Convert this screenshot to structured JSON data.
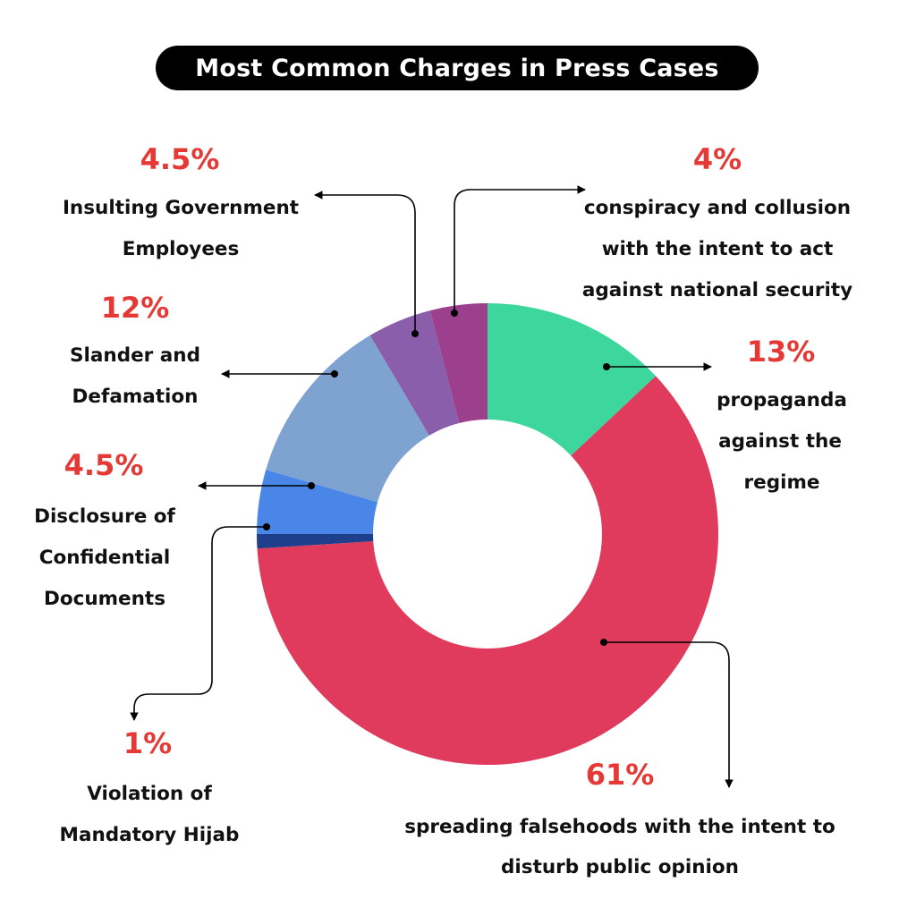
{
  "chart_data": {
    "type": "pie",
    "donut": true,
    "title": "Most Common Charges in Press Cases",
    "slices": [
      {
        "label": "propaganda against the regime",
        "lines": [
          "propaganda",
          "against the",
          "regime"
        ],
        "value": 13,
        "value_label": "13%",
        "color": "#3dd69c"
      },
      {
        "label": "spreading falsehoods with the intent to disturb public opinion",
        "lines": [
          "spreading falsehoods with the intent to",
          "disturb public opinion"
        ],
        "value": 61,
        "value_label": "61%",
        "color": "#e03a5c"
      },
      {
        "label": "Violation of Mandatory Hijab",
        "lines": [
          "Violation of",
          "Mandatory Hijab"
        ],
        "value": 1,
        "value_label": "1%",
        "color": "#1f3f8c"
      },
      {
        "label": "Disclosure of Confidential Documents",
        "lines": [
          "Disclosure of",
          "Confidential",
          "Documents"
        ],
        "value": 4.5,
        "value_label": "4.5%",
        "color": "#4a86e8"
      },
      {
        "label": "Slander and Defamation",
        "lines": [
          "Slander and",
          "Defamation"
        ],
        "value": 12,
        "value_label": "12%",
        "color": "#7ea3d0"
      },
      {
        "label": "Insulting Government Employees",
        "lines": [
          "Insulting Government",
          "Employees"
        ],
        "value": 4.5,
        "value_label": "4.5%",
        "color": "#8a5eaa"
      },
      {
        "label": "conspiracy and collusion with the intent to act against national security",
        "lines": [
          "conspiracy and collusion",
          "with the intent to act",
          "against national security"
        ],
        "value": 4,
        "value_label": "4%",
        "color": "#9c3f8c"
      }
    ],
    "colors": {
      "percent_text": "#e53935",
      "label_text": "#111111",
      "title_bg": "#000000",
      "title_text": "#ffffff",
      "hole": "#ffffff"
    }
  }
}
